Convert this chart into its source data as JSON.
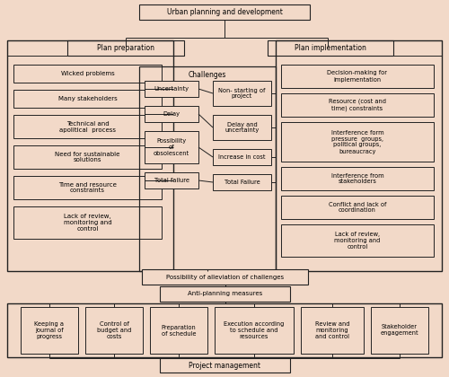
{
  "background_color": "#f2d9c8",
  "title": "Urban planning and development",
  "plan_prep_label": "Plan preparation",
  "plan_impl_label": "Plan implementation",
  "challenges_label": "Challenges",
  "left_boxes": [
    "Wicked problems",
    "Many stakeholders",
    "Technical and\napolitical  process",
    "Need for sustainable\nsolutions",
    "Time and resource\nconstraints",
    "Lack of review,\nmonitoring and\ncontrol"
  ],
  "challenge_left": [
    "Uncertainty",
    "Delay",
    "Possibility\nof\nobsolescent",
    "Total failure"
  ],
  "challenge_right": [
    "Non- starting of\nproject",
    "Delay and\nuncertainty",
    "Increase in cost",
    "Total Failure"
  ],
  "right_boxes": [
    "Decision-making for\nimplementation",
    "Resource (cost and\ntime) constraints",
    "Interference form\npressure  groups,\npolitical groups,\nbureaucracy",
    "Interference from\nstakeholders",
    "Conflict and lack of\ncoordination",
    "Lack of review,\nmonitoring and\ncontrol"
  ],
  "alleviation_label": "Possibility of alleviation of challenges",
  "anti_planning_label": "Anti-planning measures",
  "bottom_boxes": [
    "Keeping a\njournal of\nprogress",
    "Control of\nbudget and\ncosts",
    "Preparation\nof schedule",
    "Execution according\nto schedule and\nresources",
    "Review and\nmonitoring\nand control",
    "Stakeholder\nengagement"
  ],
  "project_mgmt_label": "Project management",
  "font_size": 5.5,
  "small_font": 5.0,
  "tiny_font": 4.8
}
